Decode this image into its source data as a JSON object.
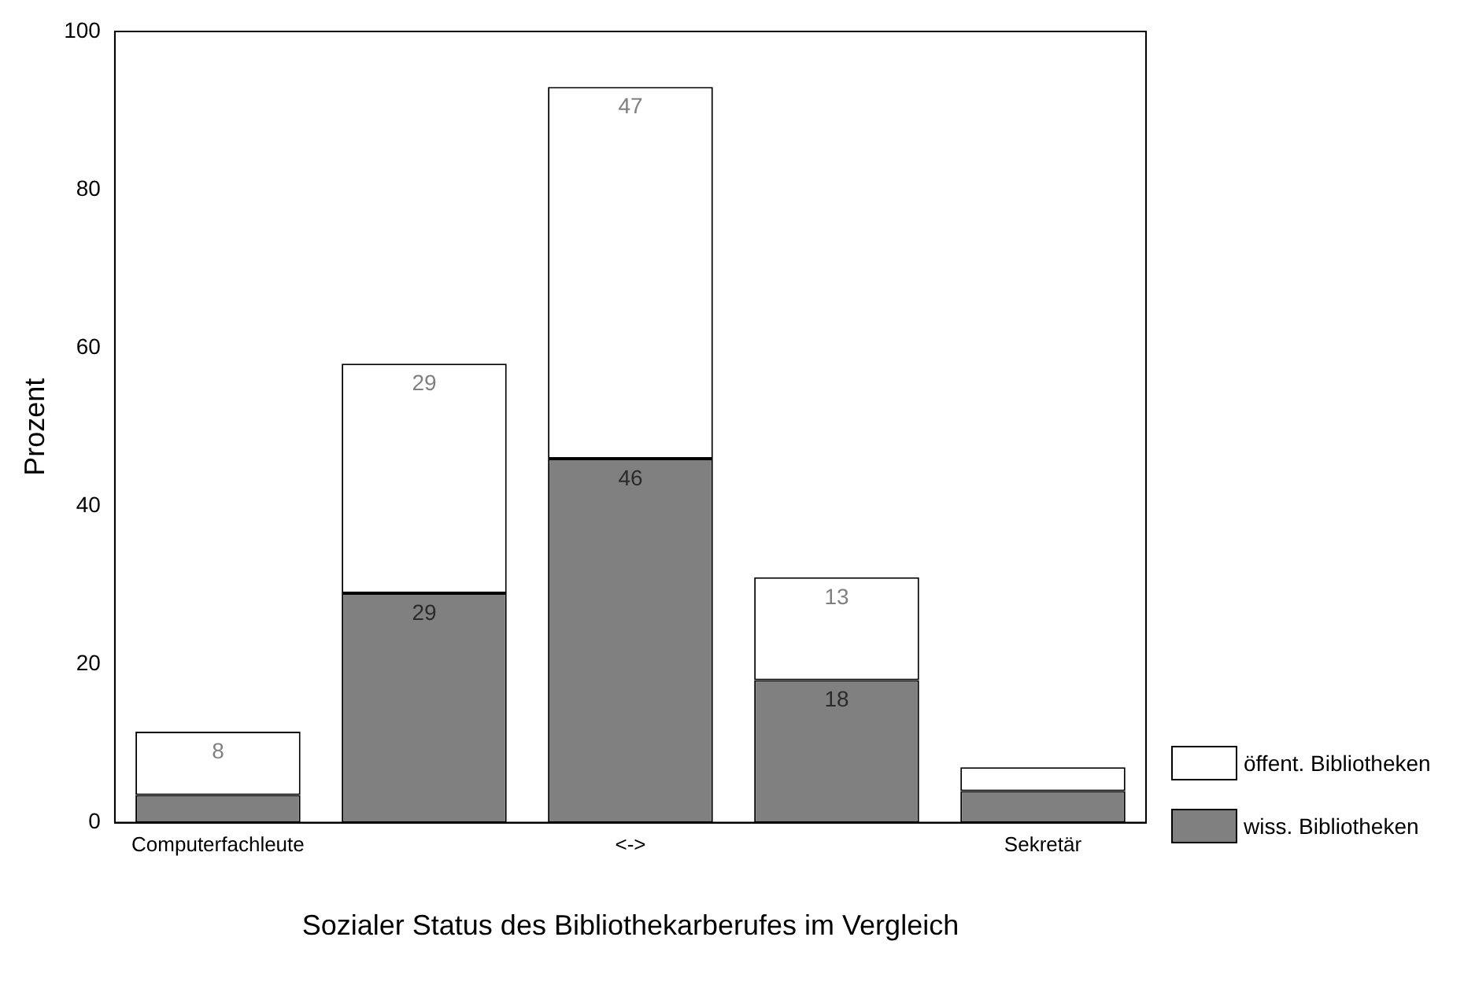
{
  "chart_data": {
    "type": "bar",
    "xlabel": "Sozialer Status des Bibliothekarberufes im Vergleich",
    "ylabel": "Prozent",
    "categories": [
      "Computerfachleute",
      null,
      "<->",
      null,
      "Sekretär"
    ],
    "stacked": true,
    "ylim": [
      0,
      100
    ],
    "yticks": [
      0,
      20,
      40,
      60,
      80,
      100
    ],
    "grid": false,
    "legend": "right",
    "series": [
      {
        "name": "wiss. Bibliotheken",
        "color": "#808080",
        "values": [
          3.5,
          29,
          46,
          18,
          4
        ],
        "value_labels": [
          null,
          "29",
          "46",
          "18",
          null
        ]
      },
      {
        "name": "öffent. Bibliotheken",
        "color": "#ffffff",
        "values": [
          8,
          29,
          47,
          13,
          3
        ],
        "value_labels": [
          "8",
          "29",
          "47",
          "13",
          null
        ]
      }
    ]
  }
}
